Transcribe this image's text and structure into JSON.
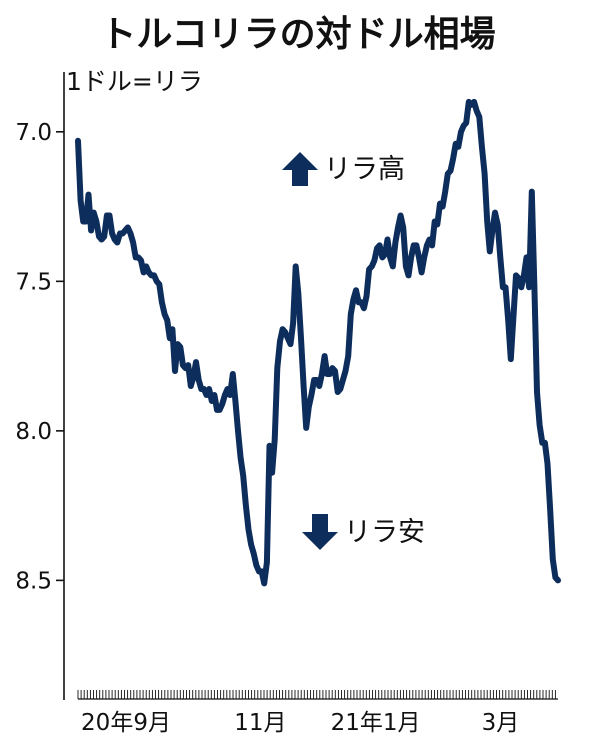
{
  "chart_data": {
    "type": "line",
    "title": "トルコリラの対ドル相場",
    "unit_label": "1ドル=リラ",
    "y_axis": {
      "min": 6.8,
      "max": 8.9,
      "inverted": true,
      "ticks": [
        "7.0",
        "7.5",
        "8.0",
        "8.5"
      ],
      "tick_values": [
        7.0,
        7.5,
        8.0,
        8.5
      ]
    },
    "x_axis": {
      "labels": [
        "20年9月",
        "11月",
        "21年1月",
        "3月"
      ],
      "label_positions": [
        0.1,
        0.38,
        0.62,
        0.88
      ]
    },
    "annotations": {
      "up": "リラ高",
      "down": "リラ安"
    },
    "color": "#0d2e5c",
    "series": [
      {
        "values": [
          7.03,
          7.23,
          7.3,
          7.3,
          7.21,
          7.33,
          7.27,
          7.3,
          7.35,
          7.36,
          7.35,
          7.28,
          7.28,
          7.34,
          7.36,
          7.37,
          7.34,
          7.34,
          7.33,
          7.32,
          7.34,
          7.37,
          7.42,
          7.42,
          7.43,
          7.47,
          7.45,
          7.47,
          7.48,
          7.48,
          7.5,
          7.51,
          7.57,
          7.61,
          7.63,
          7.69,
          7.66,
          7.8,
          7.71,
          7.72,
          7.78,
          7.79,
          7.78,
          7.85,
          7.82,
          7.77,
          7.83,
          7.86,
          7.86,
          7.88,
          7.86,
          7.9,
          7.88,
          7.93,
          7.93,
          7.91,
          7.88,
          7.86,
          7.88,
          7.81,
          7.9,
          8.0,
          8.09,
          8.15,
          8.25,
          8.33,
          8.38,
          8.41,
          8.45,
          8.47,
          8.47,
          8.51,
          8.44,
          8.05,
          8.14,
          8.03,
          7.79,
          7.7,
          7.66,
          7.67,
          7.69,
          7.71,
          7.64,
          7.45,
          7.54,
          7.69,
          7.85,
          7.99,
          7.92,
          7.88,
          7.83,
          7.83,
          7.85,
          7.81,
          7.75,
          7.81,
          7.81,
          7.79,
          7.8,
          7.87,
          7.86,
          7.83,
          7.8,
          7.75,
          7.61,
          7.56,
          7.53,
          7.57,
          7.57,
          7.59,
          7.55,
          7.46,
          7.45,
          7.43,
          7.39,
          7.38,
          7.42,
          7.41,
          7.36,
          7.42,
          7.45,
          7.37,
          7.32,
          7.28,
          7.32,
          7.45,
          7.48,
          7.42,
          7.38,
          7.38,
          7.42,
          7.47,
          7.42,
          7.38,
          7.36,
          7.38,
          7.3,
          7.31,
          7.24,
          7.25,
          7.2,
          7.14,
          7.13,
          7.09,
          7.04,
          7.05,
          7.0,
          6.98,
          6.97,
          6.9,
          6.91,
          6.9,
          6.93,
          6.95,
          7.05,
          7.14,
          7.3,
          7.4,
          7.33,
          7.27,
          7.31,
          7.42,
          7.52,
          7.52,
          7.63,
          7.76,
          7.62,
          7.48,
          7.49,
          7.52,
          7.48,
          7.42,
          7.52,
          7.2,
          7.52,
          7.87,
          7.98,
          8.04,
          8.04,
          8.11,
          8.26,
          8.43,
          8.49,
          8.5
        ]
      }
    ]
  }
}
